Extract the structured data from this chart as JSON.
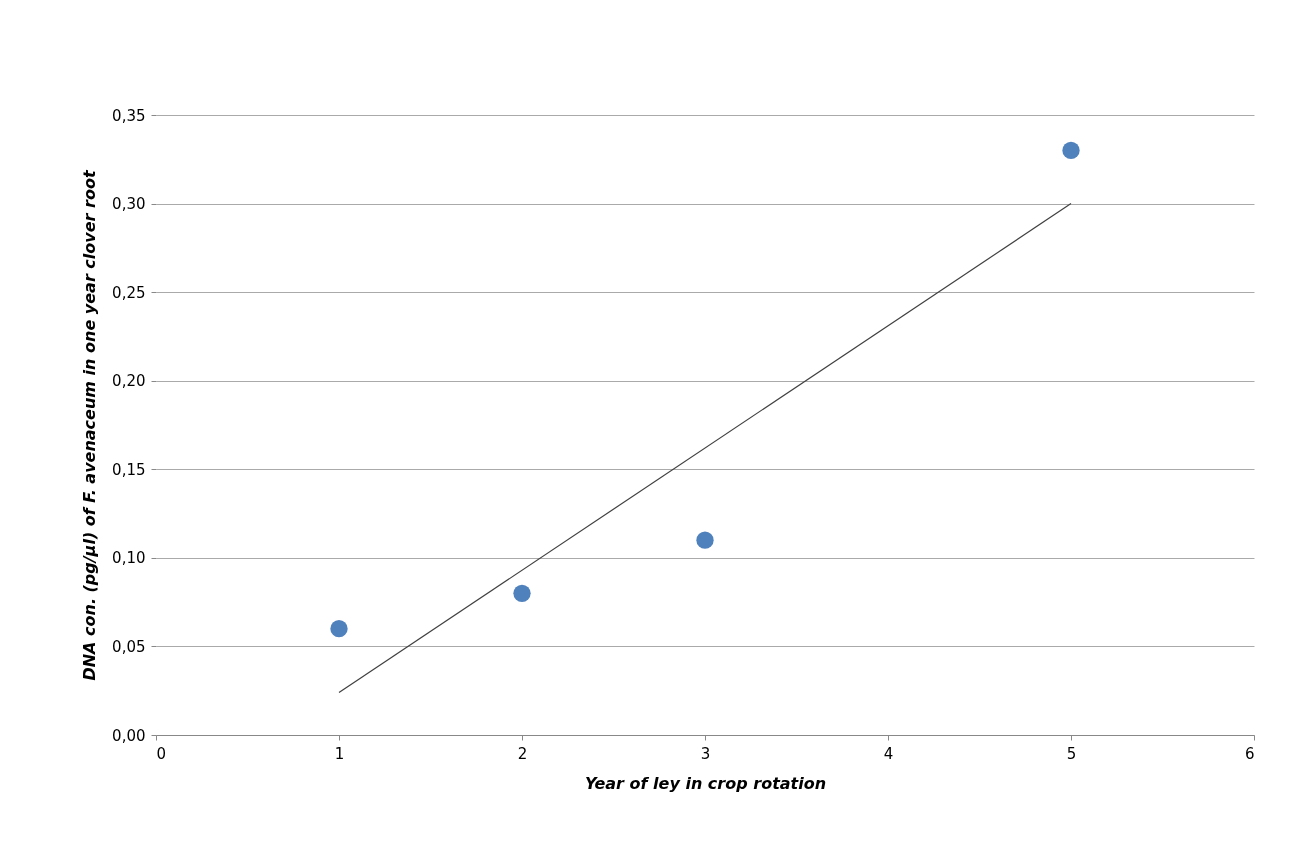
{
  "chart_data": {
    "type": "scatter",
    "xlabel": "Year of ley in crop rotation",
    "ylabel": "DNA con. (pg/µl) of F. avenaceum in one year clover root",
    "xlim": [
      0,
      6
    ],
    "xticks": [
      0,
      1,
      2,
      3,
      4,
      5,
      6
    ],
    "ylim": [
      0,
      0.35
    ],
    "yticks": [
      {
        "value": 0,
        "label": "0,00"
      },
      {
        "value": 0.05,
        "label": "0,05"
      },
      {
        "value": 0.1,
        "label": "0,10"
      },
      {
        "value": 0.15,
        "label": "0,15"
      },
      {
        "value": 0.2,
        "label": "0,20"
      },
      {
        "value": 0.25,
        "label": "0,25"
      },
      {
        "value": 0.3,
        "label": "0,30"
      },
      {
        "value": 0.35,
        "label": "0,35"
      }
    ],
    "grid": "y",
    "marker": "circle",
    "series": [
      {
        "color": "#4f81bd",
        "x": [
          1,
          2,
          3,
          5
        ],
        "values": [
          0.06,
          0.08,
          0.11,
          0.33
        ]
      },
      {
        "type": "line",
        "marker": "none",
        "color": "#404040",
        "x": [
          1,
          5
        ],
        "values": [
          0.024,
          0.3
        ]
      }
    ]
  }
}
